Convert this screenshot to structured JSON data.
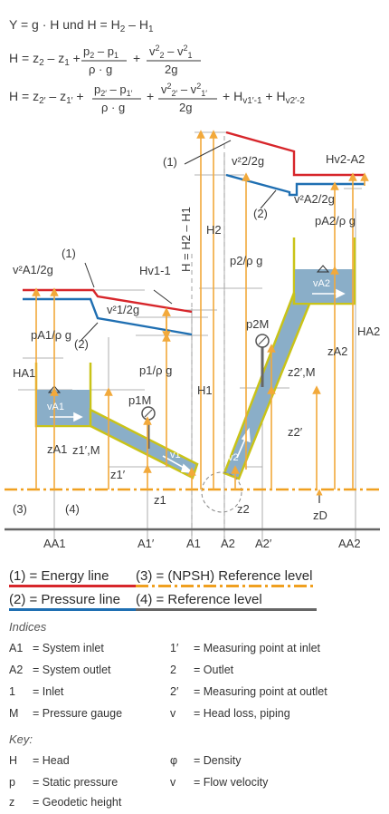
{
  "formulas": [
    {
      "display": "Y = g · H  und  H = H₂ – H₁"
    },
    {
      "display": "H = z₂ – z₁ + (p₂ – p₁)/(ρ · g) + (v²₂ – v²₁)/(2g)"
    },
    {
      "display": "H = z₂′ – z₁′ + (p₂′ – p₁′)/(ρ · g) + (v²₂′ – v²₁′)/(2g) + Hv1′-1 + Hv2′-2"
    }
  ],
  "diagram_labels": {
    "marker_1_top": "(1)",
    "marker_2_top": "(2)",
    "marker_1_left": "(1)",
    "marker_2_left": "(2)",
    "marker_3": "(3)",
    "marker_4": "(4)",
    "H_eq": "H = H2 – H1",
    "H2": "H2",
    "H1": "H1",
    "Hv2A2": "Hv2-A2",
    "Hv11": "Hv1-1",
    "v2_2g": "v²2/2g",
    "vA2_2g": "v²A2/2g",
    "vA1_2g": "v²A1/2g",
    "v1_2g": "v²1/2g",
    "p2_rhog": "p2/ρ g",
    "pA2_rhog": "pA2/ρ g",
    "pA1_rhog": "pA1/ρ g",
    "p1_rhog": "p1/ρ g",
    "p2M": "p2M",
    "p1M": "p1M",
    "vA1": "vA1",
    "vA2": "vA2",
    "v1": "v1",
    "v2": "v2",
    "HA1": "HA1",
    "HA2": "HA2",
    "zA1": "zA1",
    "zA2": "zA2",
    "z1M": "z1′,M",
    "z2M": "z2′,M",
    "z1p": "z1′",
    "z2p": "z2′",
    "z1": "z1",
    "z2": "z2",
    "zD": "zD",
    "AA1": "AA1",
    "A1p": "A1′",
    "A1": "A1",
    "A2": "A2",
    "A2p": "A2′",
    "AA2": "AA2"
  },
  "legend": {
    "energy": "(1) = Energy line",
    "npsh": "(3) = (NPSH) Reference level",
    "pressure": "(2) = Pressure line",
    "reference": "(4) = Reference level"
  },
  "colors": {
    "energy_line": "#d7262b",
    "pressure_line": "#1f6fb2",
    "npsh_line": "#f0a020",
    "reference_line": "#666666",
    "fluid": "#8aaec8",
    "pipe_edge": "#c9c318",
    "arrow": "#f2a93b"
  },
  "indices_title": "Indices",
  "indices": [
    {
      "key": "A1",
      "text": "= System inlet"
    },
    {
      "key": "A2",
      "text": "= System outlet"
    },
    {
      "key": "1",
      "text": "= Inlet"
    },
    {
      "key": "M",
      "text": "= Pressure gauge"
    },
    {
      "key": "1′",
      "text": "= Measuring point at inlet"
    },
    {
      "key": "2",
      "text": "= Outlet"
    },
    {
      "key": "2′",
      "text": "= Measuring point at outlet"
    },
    {
      "key": "v",
      "text": "= Head loss, piping"
    }
  ],
  "key_title": "Key:",
  "keys": [
    {
      "key": "H",
      "text": "= Head"
    },
    {
      "key": "p",
      "text": "= Static pressure"
    },
    {
      "key": "z",
      "text": "= Geodetic height"
    },
    {
      "key": "φ",
      "text": "= Density"
    },
    {
      "key": "v",
      "text": "= Flow velocity"
    }
  ]
}
